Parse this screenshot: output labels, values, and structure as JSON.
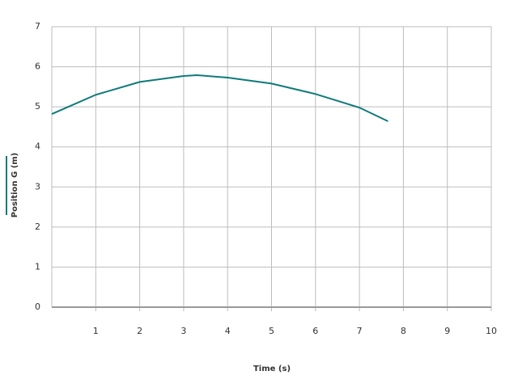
{
  "chart_data": {
    "type": "line",
    "x_label": "Time (s)",
    "y_label": "Position G  (m)",
    "x": [
      0,
      1,
      2,
      3,
      3.3,
      4,
      5,
      6,
      7,
      7.65
    ],
    "series": [
      {
        "name": "Position G  (m)",
        "color": "#0e7a7a",
        "values": [
          4.82,
          5.3,
          5.62,
          5.77,
          5.79,
          5.73,
          5.58,
          5.32,
          4.98,
          4.64
        ]
      }
    ],
    "xlim": [
      0,
      10
    ],
    "ylim": [
      0,
      7
    ],
    "xticks": [
      1,
      2,
      3,
      4,
      5,
      6,
      7,
      8,
      9,
      10
    ],
    "yticks": [
      0,
      1,
      2,
      3,
      4,
      5,
      6,
      7
    ],
    "grid": true
  }
}
